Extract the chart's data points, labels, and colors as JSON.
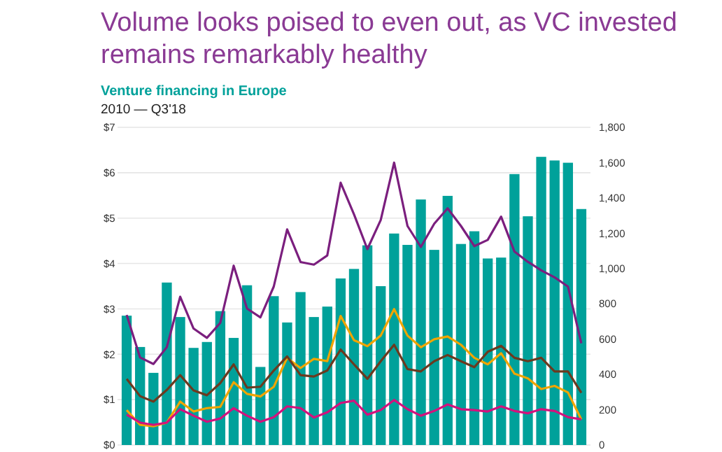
{
  "chart_data": {
    "type": "bar",
    "title": "Volume looks poised to even out, as VC invested remains remarkably healthy",
    "subtitle": "Venture financing in Europe",
    "annotations": [
      "2010 — Q3'18"
    ],
    "categories": [
      null,
      null,
      null,
      null,
      null,
      null,
      null,
      null,
      null,
      null,
      null,
      null,
      null,
      null,
      null,
      null,
      null,
      null,
      null,
      null,
      null,
      null,
      null,
      null,
      null,
      null,
      null,
      null,
      null,
      null,
      null,
      null,
      null,
      null,
      null
    ],
    "series": [
      {
        "color": "#00a19a",
        "values": [
          2.85,
          2.16,
          1.59,
          3.58,
          2.82,
          2.14,
          2.27,
          2.95,
          2.36,
          3.52,
          1.72,
          3.28,
          2.7,
          3.37,
          2.82,
          3.05,
          3.67,
          3.88,
          4.4,
          3.5,
          4.66,
          4.41,
          5.41,
          4.3,
          5.49,
          4.43,
          4.71,
          4.11,
          4.13,
          5.97,
          5.04,
          6.35,
          6.27,
          6.22,
          5.2
        ]
      },
      {
        "type": "line",
        "axis": "y2",
        "color": "#7b1f7e",
        "values": [
          737,
          496,
          459,
          554,
          840,
          660,
          607,
          692,
          1016,
          773,
          723,
          898,
          1222,
          1037,
          1022,
          1074,
          1486,
          1307,
          1110,
          1275,
          1600,
          1241,
          1122,
          1254,
          1341,
          1241,
          1127,
          1162,
          1294,
          1096,
          1038,
          990,
          950,
          898,
          576
        ]
      },
      {
        "type": "line",
        "axis": "y2",
        "color": "#f0a500",
        "values": [
          198,
          114,
          106,
          127,
          246,
          190,
          209,
          216,
          356,
          290,
          275,
          330,
          494,
          436,
          488,
          475,
          731,
          594,
          560,
          620,
          770,
          620,
          554,
          599,
          615,
          568,
          494,
          457,
          520,
          404,
          378,
          317,
          335,
          298,
          145
        ]
      },
      {
        "type": "line",
        "axis": "y2",
        "color": "#6b3a1f",
        "values": [
          375,
          277,
          246,
          312,
          396,
          309,
          282,
          351,
          457,
          325,
          330,
          422,
          502,
          396,
          388,
          422,
          541,
          457,
          375,
          475,
          568,
          430,
          417,
          475,
          510,
          475,
          441,
          528,
          562,
          494,
          475,
          494,
          417,
          417,
          296
        ]
      },
      {
        "type": "line",
        "axis": "y2",
        "color": "#d3127d",
        "values": [
          172,
          127,
          114,
          127,
          203,
          166,
          132,
          150,
          209,
          166,
          132,
          158,
          219,
          209,
          156,
          185,
          238,
          251,
          172,
          198,
          255,
          203,
          166,
          193,
          230,
          203,
          198,
          190,
          219,
          193,
          180,
          203,
          193,
          158,
          145
        ]
      }
    ],
    "ylim": [
      0,
      7
    ],
    "yticks": [
      {
        "value": 0,
        "label": "$0"
      },
      {
        "value": 1,
        "label": "$1"
      },
      {
        "value": 2,
        "label": "$2"
      },
      {
        "value": 3,
        "label": "$3"
      },
      {
        "value": 4,
        "label": "$4"
      },
      {
        "value": 5,
        "label": "$5"
      },
      {
        "value": 6,
        "label": "$6"
      },
      {
        "value": 7,
        "label": "$7"
      }
    ],
    "y2lim": [
      0,
      1800
    ],
    "y2ticks": [
      {
        "value": 0,
        "label": "0"
      },
      {
        "value": 200,
        "label": "200"
      },
      {
        "value": 400,
        "label": "400"
      },
      {
        "value": 600,
        "label": "600"
      },
      {
        "value": 800,
        "label": "800"
      },
      {
        "value": 1000,
        "label": "1,000"
      },
      {
        "value": 1200,
        "label": "1,200"
      },
      {
        "value": 1400,
        "label": "1,400"
      },
      {
        "value": 1600,
        "label": "1,600"
      },
      {
        "value": 1800,
        "label": "1,800"
      }
    ],
    "grid": "y",
    "line_style": "solid",
    "marker": "none"
  }
}
